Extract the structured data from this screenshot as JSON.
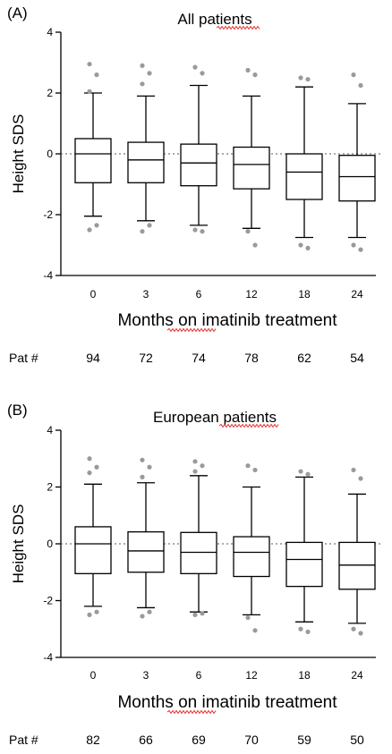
{
  "chart_data": [
    {
      "type": "box",
      "panel": "(A)",
      "title": "All patients",
      "xlabel": "Months on imatinib treatment",
      "ylabel": "Height SDS",
      "ylim": [
        -4,
        4
      ],
      "yticks": [
        4,
        2,
        0,
        -2,
        -4
      ],
      "reference_line": 0,
      "count_label": "Pat #",
      "categories": [
        "0",
        "3",
        "6",
        "12",
        "18",
        "24"
      ],
      "counts": [
        "94",
        "72",
        "74",
        "78",
        "62",
        "54"
      ],
      "boxes": [
        {
          "whisker_low": -2.05,
          "q1": -0.95,
          "median": 0.0,
          "q3": 0.5,
          "whisker_high": 2.0,
          "outliers": [
            2.95,
            2.6,
            2.05,
            -2.35,
            -2.5
          ]
        },
        {
          "whisker_low": -2.2,
          "q1": -0.95,
          "median": -0.2,
          "q3": 0.38,
          "whisker_high": 1.9,
          "outliers": [
            2.9,
            2.65,
            2.3,
            -2.35,
            -2.55
          ]
        },
        {
          "whisker_low": -2.35,
          "q1": -1.05,
          "median": -0.3,
          "q3": 0.32,
          "whisker_high": 2.25,
          "outliers": [
            2.85,
            2.65,
            -2.5,
            -2.55
          ]
        },
        {
          "whisker_low": -2.45,
          "q1": -1.15,
          "median": -0.35,
          "q3": 0.22,
          "whisker_high": 1.9,
          "outliers": [
            2.75,
            2.6,
            -2.55,
            -3.0
          ]
        },
        {
          "whisker_low": -2.75,
          "q1": -1.5,
          "median": -0.6,
          "q3": 0.0,
          "whisker_high": 2.2,
          "outliers": [
            2.5,
            2.45,
            -3.0,
            -3.1
          ]
        },
        {
          "whisker_low": -2.75,
          "q1": -1.55,
          "median": -0.75,
          "q3": -0.05,
          "whisker_high": 1.65,
          "outliers": [
            2.6,
            2.25,
            -3.0,
            -3.15
          ]
        }
      ]
    },
    {
      "type": "box",
      "panel": "(B)",
      "title": "European patients",
      "xlabel": "Months on imatinib treatment",
      "ylabel": "Height SDS",
      "ylim": [
        -4,
        4
      ],
      "yticks": [
        4,
        2,
        0,
        -2,
        -4
      ],
      "reference_line": 0,
      "count_label": "Pat #",
      "categories": [
        "0",
        "3",
        "6",
        "12",
        "18",
        "24"
      ],
      "counts": [
        "82",
        "66",
        "69",
        "70",
        "59",
        "50"
      ],
      "boxes": [
        {
          "whisker_low": -2.2,
          "q1": -1.05,
          "median": 0.0,
          "q3": 0.6,
          "whisker_high": 2.1,
          "outliers": [
            3.0,
            2.7,
            2.5,
            -2.4,
            -2.5
          ]
        },
        {
          "whisker_low": -2.25,
          "q1": -1.0,
          "median": -0.25,
          "q3": 0.42,
          "whisker_high": 2.15,
          "outliers": [
            2.95,
            2.7,
            2.35,
            -2.4,
            -2.55
          ]
        },
        {
          "whisker_low": -2.4,
          "q1": -1.05,
          "median": -0.3,
          "q3": 0.4,
          "whisker_high": 2.4,
          "outliers": [
            2.9,
            2.75,
            2.55,
            -2.45,
            -2.5
          ]
        },
        {
          "whisker_low": -2.5,
          "q1": -1.15,
          "median": -0.3,
          "q3": 0.25,
          "whisker_high": 2.0,
          "outliers": [
            2.75,
            2.6,
            -2.6,
            -3.05
          ]
        },
        {
          "whisker_low": -2.75,
          "q1": -1.5,
          "median": -0.55,
          "q3": 0.05,
          "whisker_high": 2.35,
          "outliers": [
            2.55,
            2.45,
            -3.0,
            -3.1
          ]
        },
        {
          "whisker_low": -2.8,
          "q1": -1.6,
          "median": -0.75,
          "q3": 0.05,
          "whisker_high": 1.75,
          "outliers": [
            2.6,
            2.3,
            -3.0,
            -3.15
          ]
        }
      ]
    }
  ]
}
